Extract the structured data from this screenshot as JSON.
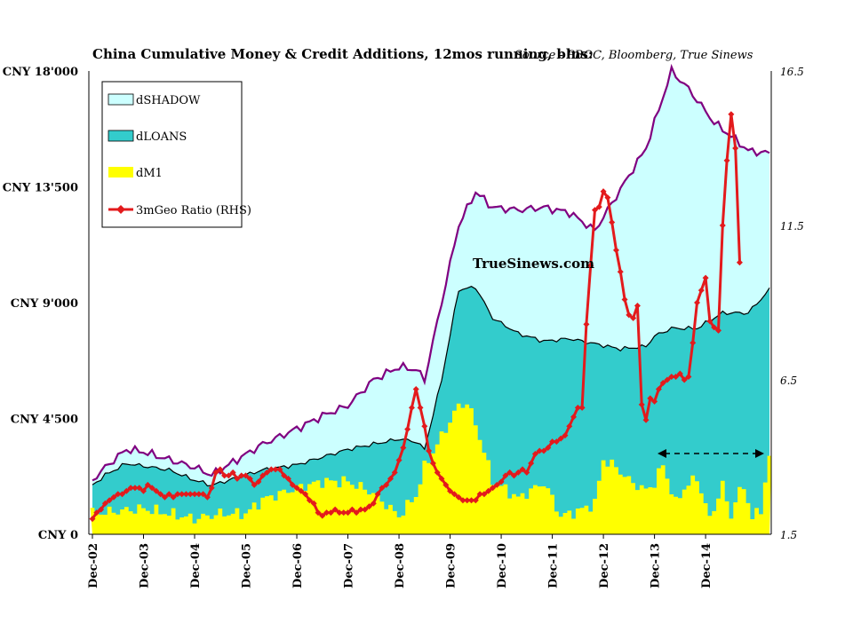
{
  "chart_data": {
    "type": "area",
    "title": "China Cumulative Money & Credit Additions, 12mos running, blns:",
    "subtitle": "Source - PBOC, Bloomberg, True Sinews",
    "watermark": "TrueSinews.com",
    "left_axis": {
      "ticks": [
        "CNY 0",
        "CNY 4'500",
        "CNY 9'000",
        "CNY 13'500",
        "CNY 18'000"
      ],
      "tick_values": [
        0,
        4500,
        9000,
        13500,
        18000
      ],
      "range": [
        0,
        18000
      ]
    },
    "right_axis": {
      "ticks": [
        "1.5",
        "6.5",
        "11.5",
        "16.5"
      ],
      "tick_values": [
        1.5,
        6.5,
        11.5,
        16.5
      ],
      "range": [
        1.5,
        16.5
      ]
    },
    "x_axis": {
      "ticks": [
        "Dec-02",
        "Dec-03",
        "Dec-04",
        "Dec-05",
        "Dec-06",
        "Dec-07",
        "Dec-08",
        "Dec-09",
        "Dec-10",
        "Dec-11",
        "Dec-12",
        "Dec-13",
        "Dec-14"
      ],
      "start": "Dec-02",
      "end": "Feb-15",
      "frequency": "monthly"
    },
    "legend": {
      "placement": "top-left",
      "items": [
        {
          "label": "dSHADOW",
          "color": "#ccffff",
          "edge": "#800080",
          "kind": "area"
        },
        {
          "label": "dLOANS",
          "color": "#33cccc",
          "edge": "#000000",
          "kind": "area"
        },
        {
          "label": "dM1",
          "color": "#ffff00",
          "edge": "none",
          "kind": "area"
        },
        {
          "label": "3mGeo Ratio (RHS)",
          "color": "#e31a1c",
          "edge": "#e31a1c",
          "kind": "line-marker"
        }
      ]
    },
    "annotation": {
      "type": "double-arrow",
      "from": "Dec-12",
      "to": "Dec-14",
      "style": "dashed"
    },
    "series": [
      {
        "name": "dM1",
        "axis": "left",
        "anchors": [
          [
            0,
            800
          ],
          [
            12,
            1000
          ],
          [
            24,
            600
          ],
          [
            30,
            800
          ],
          [
            36,
            800
          ],
          [
            40,
            1350
          ],
          [
            48,
            1800
          ],
          [
            54,
            2050
          ],
          [
            60,
            2050
          ],
          [
            66,
            1600
          ],
          [
            72,
            700
          ],
          [
            76,
            1500
          ],
          [
            78,
            2600
          ],
          [
            82,
            3800
          ],
          [
            86,
            5000
          ],
          [
            88,
            5100
          ],
          [
            90,
            4300
          ],
          [
            94,
            2100
          ],
          [
            100,
            1400
          ],
          [
            106,
            2000
          ],
          [
            108,
            1400
          ],
          [
            110,
            700
          ],
          [
            114,
            900
          ],
          [
            118,
            1200
          ],
          [
            120,
            2900
          ],
          [
            123,
            2600
          ],
          [
            126,
            2100
          ],
          [
            130,
            1700
          ],
          [
            132,
            2000
          ],
          [
            134,
            2700
          ],
          [
            137,
            1200
          ],
          [
            139,
            1800
          ],
          [
            142,
            2200
          ],
          [
            145,
            600
          ],
          [
            148,
            1900
          ],
          [
            150,
            700
          ],
          [
            151,
            1300
          ],
          [
            153,
            1900
          ],
          [
            155,
            600
          ],
          [
            157,
            1000
          ],
          [
            159,
            3000
          ]
        ]
      },
      {
        "name": "dLOANS",
        "axis": "left",
        "anchors": [
          [
            0,
            1900
          ],
          [
            3,
            2300
          ],
          [
            8,
            2750
          ],
          [
            12,
            2650
          ],
          [
            18,
            2500
          ],
          [
            24,
            2100
          ],
          [
            28,
            1900
          ],
          [
            34,
            2200
          ],
          [
            40,
            2500
          ],
          [
            48,
            2700
          ],
          [
            54,
            3000
          ],
          [
            60,
            3300
          ],
          [
            66,
            3500
          ],
          [
            72,
            3700
          ],
          [
            76,
            3600
          ],
          [
            78,
            3300
          ],
          [
            82,
            6000
          ],
          [
            86,
            9500
          ],
          [
            90,
            9600
          ],
          [
            94,
            8400
          ],
          [
            100,
            7800
          ],
          [
            106,
            7500
          ],
          [
            112,
            7600
          ],
          [
            118,
            7400
          ],
          [
            124,
            7200
          ],
          [
            130,
            7300
          ],
          [
            132,
            7700
          ],
          [
            136,
            8000
          ],
          [
            142,
            8000
          ],
          [
            148,
            8600
          ],
          [
            154,
            8600
          ],
          [
            159,
            9500
          ]
        ]
      },
      {
        "name": "dSHADOW",
        "axis": "left",
        "anchors": [
          [
            0,
            2100
          ],
          [
            3,
            2600
          ],
          [
            8,
            3300
          ],
          [
            12,
            3200
          ],
          [
            18,
            2900
          ],
          [
            24,
            2600
          ],
          [
            28,
            2300
          ],
          [
            34,
            2900
          ],
          [
            40,
            3500
          ],
          [
            48,
            4100
          ],
          [
            54,
            4600
          ],
          [
            60,
            5000
          ],
          [
            66,
            6000
          ],
          [
            72,
            6500
          ],
          [
            76,
            6400
          ],
          [
            78,
            6000
          ],
          [
            82,
            9000
          ],
          [
            86,
            12000
          ],
          [
            90,
            13300
          ],
          [
            94,
            12700
          ],
          [
            100,
            12600
          ],
          [
            106,
            12700
          ],
          [
            112,
            12500
          ],
          [
            118,
            11800
          ],
          [
            124,
            13400
          ],
          [
            130,
            15000
          ],
          [
            134,
            17000
          ],
          [
            136,
            18000
          ],
          [
            140,
            17300
          ],
          [
            146,
            16000
          ],
          [
            152,
            15200
          ],
          [
            154,
            14900
          ],
          [
            159,
            14800
          ]
        ]
      },
      {
        "name": "3mGeo Ratio (RHS)",
        "axis": "right",
        "points": [
          2.0,
          2.2,
          2.3,
          2.5,
          2.6,
          2.7,
          2.8,
          2.8,
          2.9,
          3.0,
          3.0,
          3.0,
          2.9,
          3.1,
          3.0,
          2.9,
          2.8,
          2.7,
          2.8,
          2.7,
          2.8,
          2.8,
          2.8,
          2.8,
          2.8,
          2.8,
          2.8,
          2.7,
          3.0,
          3.5,
          3.6,
          3.4,
          3.4,
          3.5,
          3.3,
          3.4,
          3.4,
          3.3,
          3.1,
          3.2,
          3.4,
          3.5,
          3.6,
          3.6,
          3.6,
          3.4,
          3.3,
          3.1,
          3.0,
          2.9,
          2.8,
          2.6,
          2.5,
          2.2,
          2.1,
          2.2,
          2.2,
          2.3,
          2.2,
          2.2,
          2.2,
          2.3,
          2.2,
          2.3,
          2.3,
          2.4,
          2.5,
          2.8,
          3.0,
          3.1,
          3.3,
          3.5,
          3.9,
          4.3,
          4.9,
          5.6,
          6.2,
          5.6,
          5.0,
          4.2,
          3.8,
          3.5,
          3.3,
          3.1,
          2.9,
          2.8,
          2.7,
          2.6,
          2.6,
          2.6,
          2.6,
          2.8,
          2.8,
          2.9,
          3.0,
          3.1,
          3.2,
          3.4,
          3.5,
          3.4,
          3.5,
          3.6,
          3.5,
          3.8,
          4.1,
          4.2,
          4.2,
          4.3,
          4.5,
          4.5,
          4.6,
          4.7,
          5.0,
          5.3,
          5.6,
          5.6,
          8.3,
          10.2,
          12.0,
          12.1,
          12.6,
          12.4,
          11.6,
          10.7,
          10.0,
          9.1,
          8.6,
          8.5,
          8.9,
          5.7,
          5.2,
          5.9,
          5.8,
          6.2,
          6.4,
          6.5,
          6.6,
          6.6,
          6.7,
          6.5,
          6.6,
          7.7,
          9.0,
          9.4,
          9.8,
          8.4,
          8.2,
          8.1,
          11.5,
          13.6,
          15.1,
          14.0,
          10.3
        ]
      }
    ]
  }
}
